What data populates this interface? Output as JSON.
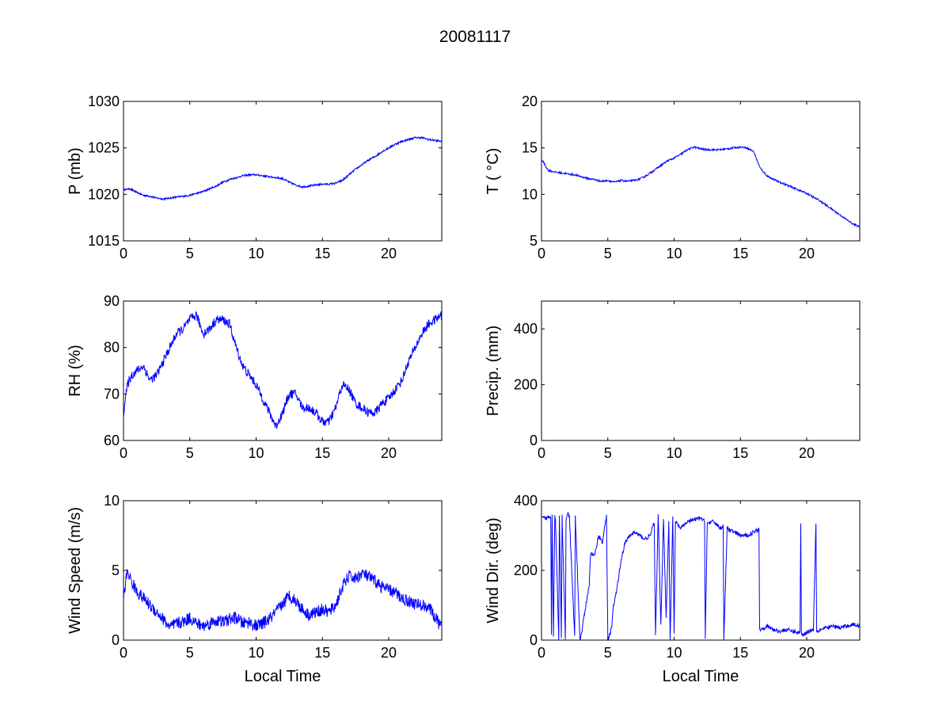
{
  "figure": {
    "title": "20081117",
    "line_color": "#0000ff"
  },
  "chart_data": [
    {
      "type": "line",
      "key": "pressure",
      "xlabel": "",
      "ylabel": "P (mb)",
      "xlim": [
        0,
        24
      ],
      "ylim": [
        1015,
        1030
      ],
      "xticks": [
        0,
        5,
        10,
        15,
        20
      ],
      "yticks": [
        1015,
        1020,
        1025,
        1030
      ],
      "series": [
        {
          "x": [
            0,
            0.5,
            1,
            1.5,
            2,
            2.5,
            3,
            3.5,
            4,
            4.5,
            5,
            5.5,
            6,
            6.5,
            7,
            7.5,
            8,
            8.5,
            9,
            9.5,
            10,
            10.5,
            11,
            11.5,
            12,
            12.5,
            13,
            13.5,
            14,
            14.5,
            15,
            15.5,
            16,
            16.5,
            17,
            17.5,
            18,
            18.5,
            19,
            19.5,
            20,
            20.5,
            21,
            21.5,
            22,
            22.5,
            23,
            23.5,
            24
          ],
          "y": [
            1020.5,
            1020.6,
            1020.2,
            1019.9,
            1019.8,
            1019.6,
            1019.5,
            1019.6,
            1019.7,
            1019.8,
            1019.9,
            1020.1,
            1020.3,
            1020.6,
            1020.9,
            1021.3,
            1021.6,
            1021.8,
            1022.0,
            1022.1,
            1022.1,
            1022.0,
            1021.9,
            1021.8,
            1021.7,
            1021.3,
            1021.0,
            1020.8,
            1020.9,
            1021.0,
            1021.1,
            1021.1,
            1021.2,
            1021.5,
            1022.1,
            1022.7,
            1023.2,
            1023.7,
            1024.1,
            1024.6,
            1025.0,
            1025.4,
            1025.7,
            1025.9,
            1026.1,
            1026.1,
            1025.9,
            1025.8,
            1025.7
          ],
          "noise": 0.1
        }
      ]
    },
    {
      "type": "line",
      "key": "temperature",
      "xlabel": "",
      "ylabel": "T ( °C)",
      "xlim": [
        0,
        24
      ],
      "ylim": [
        5,
        20
      ],
      "xticks": [
        0,
        5,
        10,
        15,
        20
      ],
      "yticks": [
        5,
        10,
        15,
        20
      ],
      "series": [
        {
          "x": [
            0,
            0.5,
            1,
            1.5,
            2,
            2.5,
            3,
            3.5,
            4,
            4.5,
            5,
            5.5,
            6,
            6.5,
            7,
            7.5,
            8,
            8.5,
            9,
            9.5,
            10,
            10.5,
            11,
            11.5,
            12,
            12.5,
            13,
            13.5,
            14,
            14.5,
            15,
            15.5,
            16,
            16.5,
            17,
            17.5,
            18,
            18.5,
            19,
            19.5,
            20,
            20.5,
            21,
            21.5,
            22,
            22.5,
            23,
            23.5,
            24
          ],
          "y": [
            13.8,
            12.6,
            12.4,
            12.3,
            12.2,
            12.1,
            11.9,
            11.7,
            11.6,
            11.4,
            11.5,
            11.3,
            11.5,
            11.4,
            11.5,
            11.7,
            12.1,
            12.6,
            13.1,
            13.6,
            13.9,
            14.3,
            14.8,
            15.1,
            14.9,
            14.8,
            14.8,
            14.8,
            14.9,
            15.0,
            15.1,
            15.0,
            14.6,
            12.8,
            12.0,
            11.6,
            11.3,
            11.0,
            10.7,
            10.4,
            10.1,
            9.7,
            9.3,
            8.8,
            8.3,
            7.8,
            7.3,
            6.8,
            6.5
          ],
          "noise": 0.1
        }
      ]
    },
    {
      "type": "line",
      "key": "humidity",
      "xlabel": "",
      "ylabel": "RH (%)",
      "xlim": [
        0,
        24
      ],
      "ylim": [
        60,
        90
      ],
      "xticks": [
        0,
        5,
        10,
        15,
        20
      ],
      "yticks": [
        60,
        70,
        80,
        90
      ],
      "series": [
        {
          "x": [
            0,
            0.3,
            0.6,
            1,
            1.5,
            2,
            2.5,
            3,
            3.5,
            4,
            4.5,
            5,
            5.5,
            6,
            6.5,
            7,
            7.5,
            8,
            8.5,
            9,
            9.5,
            10,
            10.5,
            11,
            11.5,
            12,
            12.5,
            13,
            13.5,
            14,
            14.5,
            15,
            15.5,
            16,
            16.5,
            17,
            17.5,
            18,
            18.5,
            19,
            19.5,
            20,
            20.5,
            21,
            21.5,
            22,
            22.5,
            23,
            23.5,
            24
          ],
          "y": [
            66,
            72,
            74,
            75,
            76,
            73,
            74,
            77,
            80,
            83,
            84,
            86,
            87,
            83,
            84,
            86,
            86,
            85,
            80,
            76,
            74,
            72,
            69,
            66,
            63,
            66,
            70,
            70,
            67,
            67,
            66,
            64,
            64,
            67,
            72,
            71,
            68,
            67,
            66,
            66,
            68,
            69,
            71,
            73,
            77,
            80,
            83,
            85,
            86,
            87
          ],
          "noise": 1.0
        }
      ]
    },
    {
      "type": "line",
      "key": "precipitation",
      "xlabel": "",
      "ylabel": "Precip. (mm)",
      "xlim": [
        0,
        24
      ],
      "ylim": [
        0,
        500
      ],
      "xticks": [
        0,
        5,
        10,
        15,
        20
      ],
      "yticks": [
        0,
        200,
        400
      ],
      "series": [
        {
          "x": [
            0,
            0.3
          ],
          "y": [
            0,
            0
          ],
          "noise": 0
        }
      ]
    },
    {
      "type": "line",
      "key": "wind_speed",
      "xlabel": "Local Time",
      "ylabel": "Wind Speed (m/s)",
      "xlim": [
        0,
        24
      ],
      "ylim": [
        0,
        10
      ],
      "xticks": [
        0,
        5,
        10,
        15,
        20
      ],
      "yticks": [
        0,
        5,
        10
      ],
      "series": [
        {
          "x": [
            0,
            0.3,
            0.6,
            1,
            1.5,
            2,
            2.5,
            3,
            3.5,
            4,
            4.5,
            5,
            5.5,
            6,
            6.5,
            7,
            7.5,
            8,
            8.5,
            9,
            9.5,
            10,
            10.5,
            11,
            11.5,
            12,
            12.5,
            13,
            13.5,
            14,
            14.5,
            15,
            15.5,
            16,
            16.5,
            17,
            17.5,
            18,
            18.5,
            19,
            19.5,
            20,
            20.5,
            21,
            21.5,
            22,
            22.5,
            23,
            23.5,
            24
          ],
          "y": [
            3.0,
            5.0,
            4.2,
            3.5,
            3.0,
            2.5,
            2.0,
            1.5,
            0.9,
            1.2,
            1.3,
            1.6,
            1.2,
            1.0,
            1.2,
            1.4,
            1.3,
            1.5,
            1.6,
            1.2,
            1.3,
            1.0,
            1.2,
            1.5,
            2.0,
            2.6,
            3.2,
            2.8,
            2.2,
            1.8,
            2.0,
            2.2,
            2.0,
            2.5,
            3.8,
            4.6,
            4.4,
            4.8,
            4.5,
            4.2,
            3.8,
            3.6,
            3.4,
            3.0,
            2.8,
            2.6,
            2.5,
            2.4,
            1.6,
            0.9
          ],
          "noise": 0.45
        }
      ]
    },
    {
      "type": "line",
      "key": "wind_direction",
      "xlabel": "Local Time",
      "ylabel": "Wind Dir. (deg)",
      "xlim": [
        0,
        24
      ],
      "ylim": [
        0,
        400
      ],
      "xticks": [
        0,
        5,
        10,
        15,
        20
      ],
      "yticks": [
        0,
        200,
        400
      ],
      "series": [
        {
          "x": [
            0,
            0.4,
            0.7,
            0.75,
            0.8,
            0.9,
            1.0,
            1.05,
            1.3,
            1.35,
            1.5,
            1.55,
            1.8,
            1.85,
            2.0,
            2.1,
            2.5,
            2.55,
            2.9,
            2.95,
            3.6,
            3.7,
            4.0,
            4.3,
            4.6,
            4.9,
            5.0,
            5.05,
            5.3,
            5.4,
            5.7,
            6.0,
            6.3,
            6.7,
            7.0,
            7.4,
            7.8,
            8.2,
            8.5,
            8.6,
            8.8,
            9.0,
            9.2,
            9.4,
            9.6,
            9.7,
            9.9,
            10.0,
            10.1,
            10.3,
            10.5,
            11.0,
            11.5,
            12.0,
            12.3,
            12.35,
            12.5,
            13.0,
            13.5,
            13.7,
            13.75,
            14.0,
            14.5,
            15.0,
            15.5,
            16.0,
            16.4,
            16.45,
            17.0,
            17.5,
            18.0,
            18.5,
            19.0,
            19.5,
            19.55,
            19.6,
            19.7,
            19.9,
            20.1,
            20.5,
            20.7,
            20.75,
            20.8,
            21.0,
            21.5,
            22.0,
            22.5,
            23.0,
            23.5,
            24.0
          ],
          "y": [
            350,
            350,
            355,
            20,
            360,
            10,
            355,
            350,
            5,
            355,
            10,
            355,
            5,
            350,
            360,
            355,
            10,
            355,
            0,
            5,
            160,
            250,
            240,
            300,
            280,
            360,
            10,
            0,
            40,
            90,
            150,
            230,
            280,
            300,
            310,
            300,
            290,
            300,
            340,
            10,
            360,
            40,
            350,
            60,
            340,
            0,
            350,
            20,
            340,
            330,
            320,
            340,
            345,
            350,
            340,
            10,
            335,
            340,
            320,
            330,
            0,
            320,
            310,
            300,
            300,
            310,
            320,
            30,
            40,
            30,
            25,
            30,
            25,
            20,
            340,
            20,
            15,
            20,
            25,
            30,
            340,
            30,
            25,
            30,
            35,
            40,
            35,
            40,
            45,
            40
          ],
          "noise": 6
        }
      ]
    }
  ]
}
